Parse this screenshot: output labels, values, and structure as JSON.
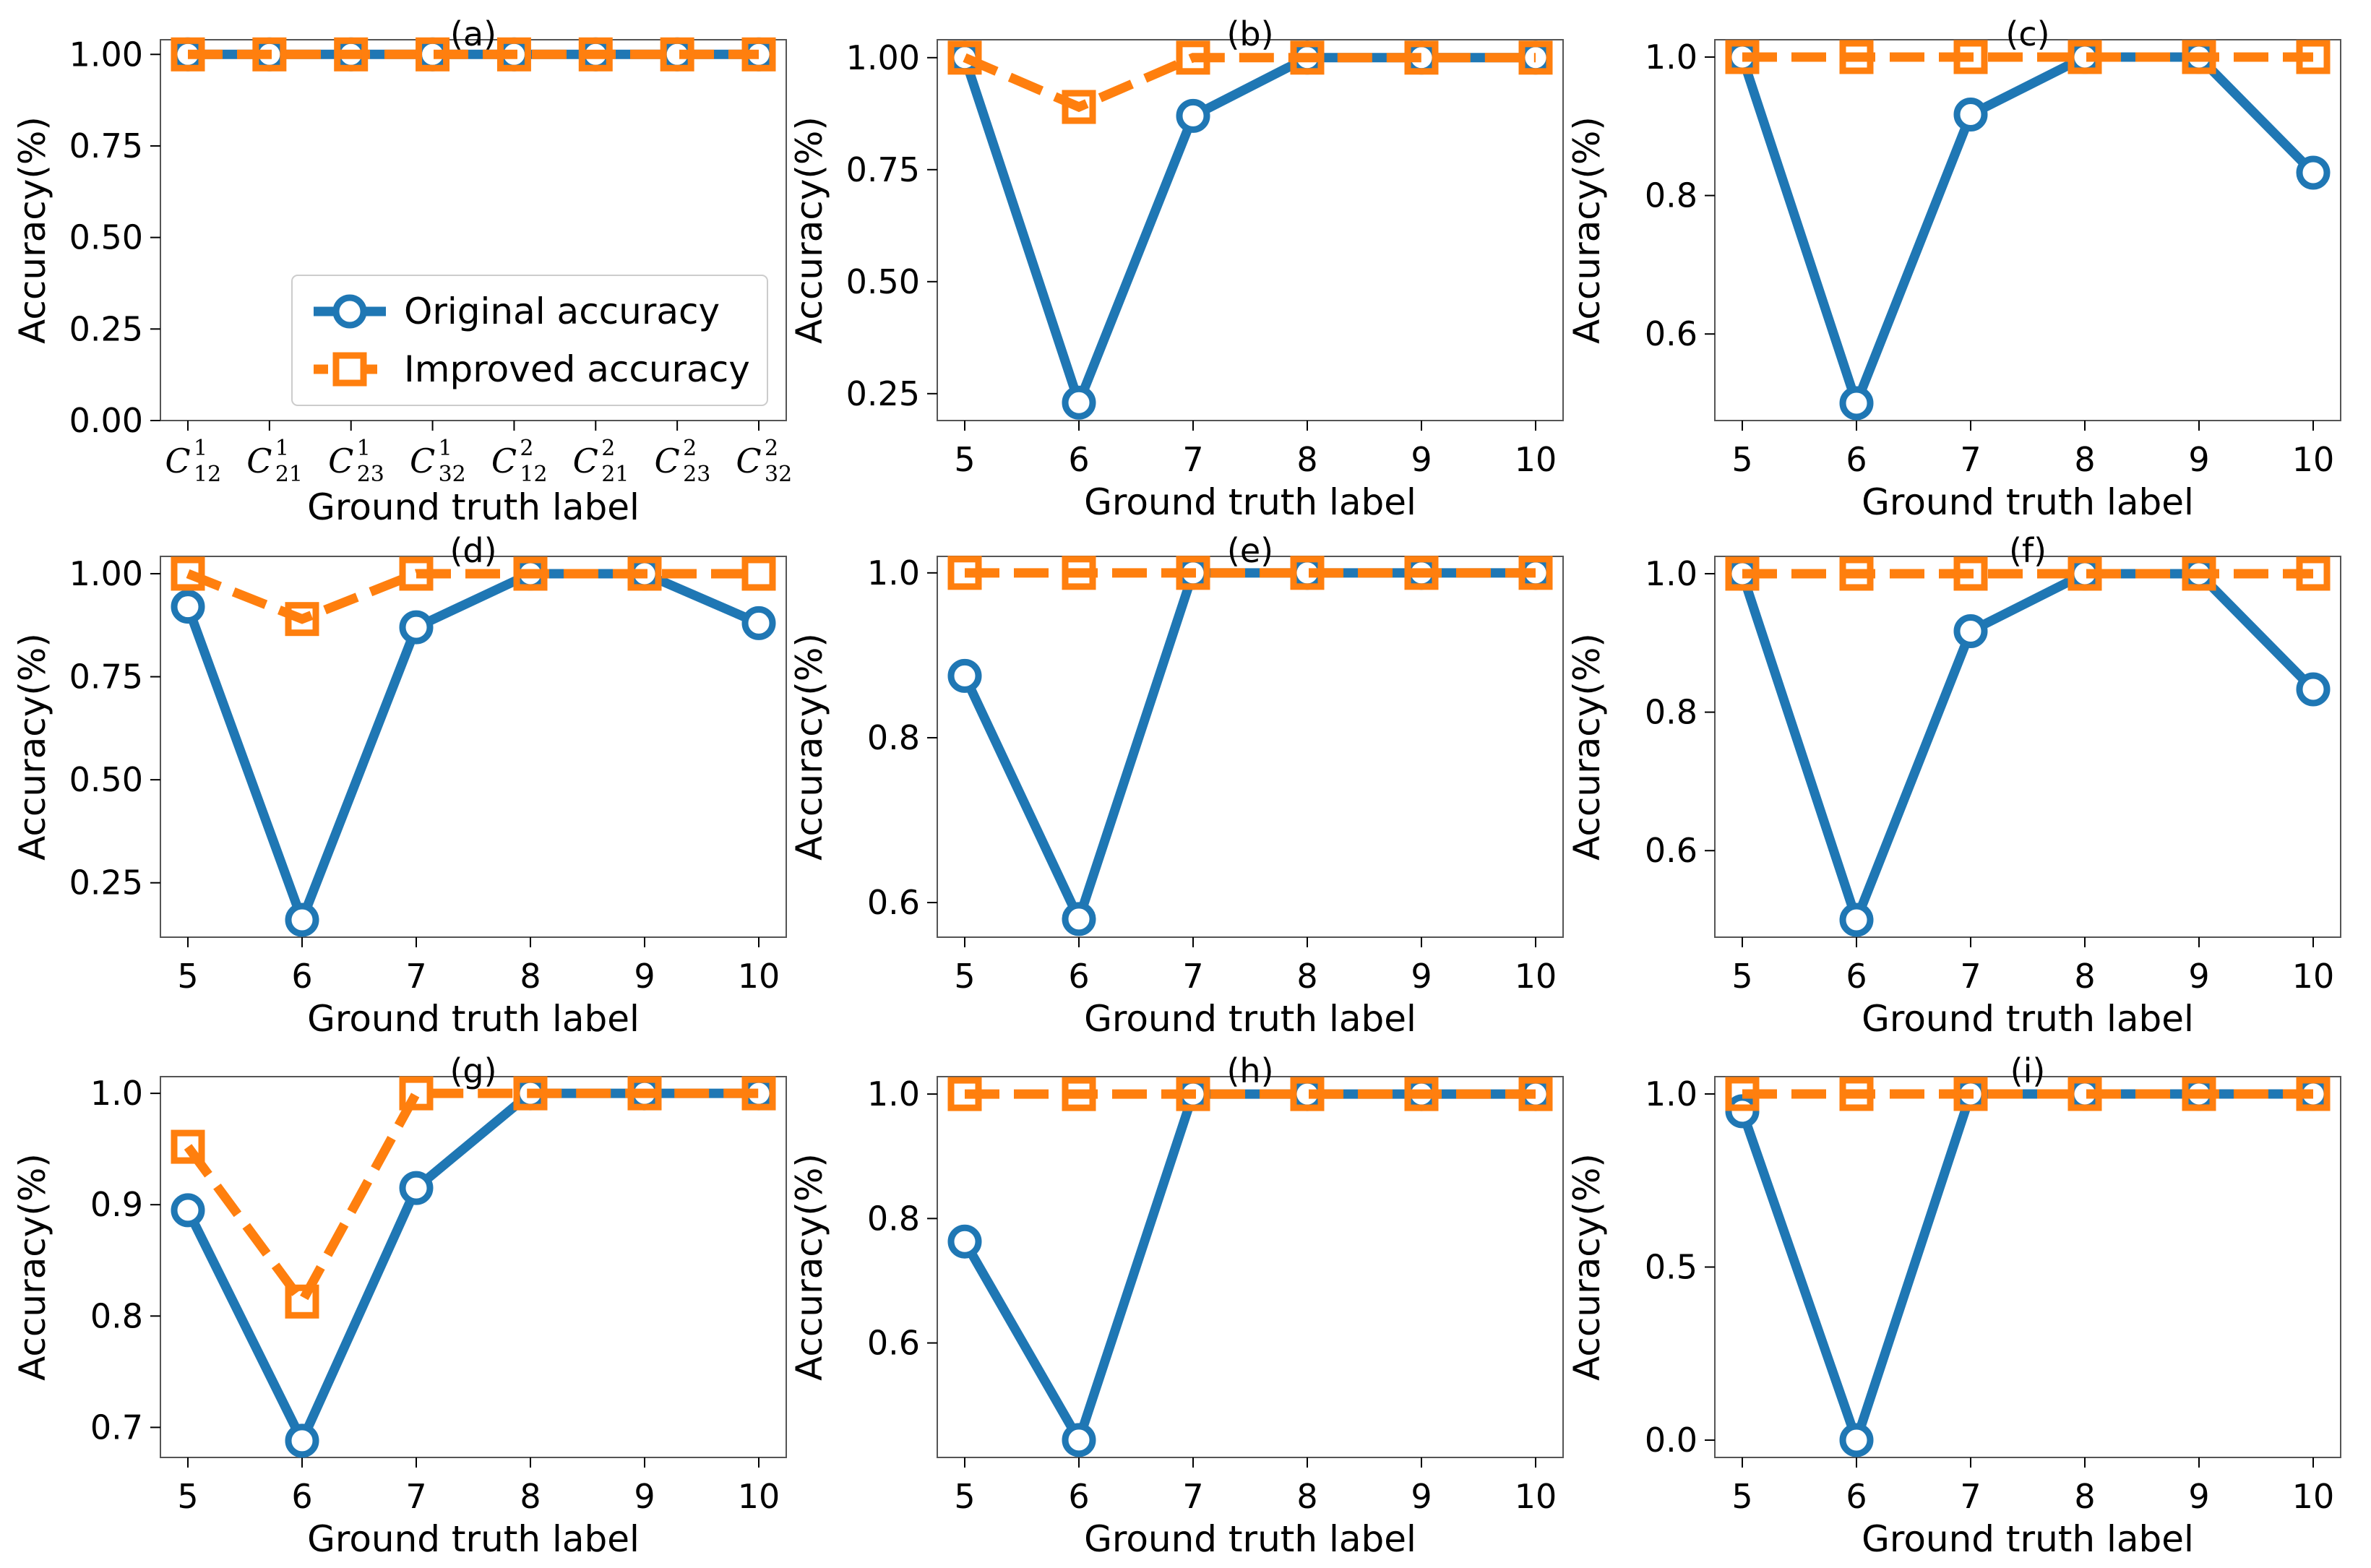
{
  "colors": {
    "original": "#1f77b4",
    "improved": "#ff7f0e"
  },
  "legend": {
    "placement": "lower-right",
    "original_label": "Original accuracy",
    "improved_label": "Improved accuracy"
  },
  "chart_data": [
    {
      "type": "line",
      "title": "(a)",
      "xlabel": "Ground truth label",
      "ylabel": "Accuracy(%)",
      "categories": [
        {
          "base": "C",
          "sup": "1",
          "sub": "12"
        },
        {
          "base": "C",
          "sup": "1",
          "sub": "21"
        },
        {
          "base": "C",
          "sup": "1",
          "sub": "23"
        },
        {
          "base": "C",
          "sup": "1",
          "sub": "32"
        },
        {
          "base": "C",
          "sup": "2",
          "sub": "12"
        },
        {
          "base": "C",
          "sup": "2",
          "sub": "21"
        },
        {
          "base": "C",
          "sup": "2",
          "sub": "23"
        },
        {
          "base": "C",
          "sup": "2",
          "sub": "32"
        }
      ],
      "ylim": [
        0,
        1.04
      ],
      "yticks": [
        "0.00",
        "0.25",
        "0.50",
        "0.75",
        "1.00"
      ],
      "grid": false,
      "legend": true,
      "series": [
        {
          "name": "Original accuracy",
          "values": [
            1,
            1,
            1,
            1,
            1,
            1,
            1,
            1
          ]
        },
        {
          "name": "Improved accuracy",
          "values": [
            1,
            1,
            1,
            1,
            1,
            1,
            1,
            1
          ]
        }
      ]
    },
    {
      "type": "line",
      "title": "(b)",
      "xlabel": "Ground truth label",
      "ylabel": "Accuracy(%)",
      "categories": [
        "5",
        "6",
        "7",
        "8",
        "9",
        "10"
      ],
      "ylim": [
        0.19,
        1.04
      ],
      "yticks": [
        "0.25",
        "0.50",
        "0.75",
        "1.00"
      ],
      "grid": false,
      "series": [
        {
          "name": "Original accuracy",
          "values": [
            1.0,
            0.23,
            0.87,
            1.0,
            1.0,
            1.0
          ]
        },
        {
          "name": "Improved accuracy",
          "values": [
            1.0,
            0.89,
            1.0,
            1.0,
            1.0,
            1.0
          ]
        }
      ]
    },
    {
      "type": "line",
      "title": "(c)",
      "xlabel": "Ground truth label",
      "ylabel": "Accuracy(%)",
      "categories": [
        "5",
        "6",
        "7",
        "8",
        "9",
        "10"
      ],
      "ylim": [
        0.475,
        1.025
      ],
      "yticks": [
        "0.6",
        "0.8",
        "1.0"
      ],
      "grid": false,
      "series": [
        {
          "name": "Original accuracy",
          "values": [
            1.0,
            0.5,
            0.917,
            1.0,
            1.0,
            0.833
          ]
        },
        {
          "name": "Improved accuracy",
          "values": [
            1.0,
            1.0,
            1.0,
            1.0,
            1.0,
            1.0
          ]
        }
      ]
    },
    {
      "type": "line",
      "title": "(d)",
      "xlabel": "Ground truth label",
      "ylabel": "Accuracy(%)",
      "categories": [
        "5",
        "6",
        "7",
        "8",
        "9",
        "10"
      ],
      "ylim": [
        0.118,
        1.042
      ],
      "yticks": [
        "0.25",
        "0.50",
        "0.75",
        "1.00"
      ],
      "grid": false,
      "series": [
        {
          "name": "Original accuracy",
          "values": [
            0.92,
            0.16,
            0.87,
            1.0,
            1.0,
            0.88
          ]
        },
        {
          "name": "Improved accuracy",
          "values": [
            1.0,
            0.89,
            1.0,
            1.0,
            1.0,
            1.0
          ]
        }
      ]
    },
    {
      "type": "line",
      "title": "(e)",
      "xlabel": "Ground truth label",
      "ylabel": "Accuracy(%)",
      "categories": [
        "5",
        "6",
        "7",
        "8",
        "9",
        "10"
      ],
      "ylim": [
        0.558,
        1.02
      ],
      "yticks": [
        "0.6",
        "0.8",
        "1.0"
      ],
      "grid": false,
      "series": [
        {
          "name": "Original accuracy",
          "values": [
            0.875,
            0.58,
            1.0,
            1.0,
            1.0,
            1.0
          ]
        },
        {
          "name": "Improved accuracy",
          "values": [
            1.0,
            1.0,
            1.0,
            1.0,
            1.0,
            1.0
          ]
        }
      ]
    },
    {
      "type": "line",
      "title": "(f)",
      "xlabel": "Ground truth label",
      "ylabel": "Accuracy(%)",
      "categories": [
        "5",
        "6",
        "7",
        "8",
        "9",
        "10"
      ],
      "ylim": [
        0.475,
        1.025
      ],
      "yticks": [
        "0.6",
        "0.8",
        "1.0"
      ],
      "grid": false,
      "series": [
        {
          "name": "Original accuracy",
          "values": [
            1.0,
            0.5,
            0.917,
            1.0,
            1.0,
            0.833
          ]
        },
        {
          "name": "Improved accuracy",
          "values": [
            1.0,
            1.0,
            1.0,
            1.0,
            1.0,
            1.0
          ]
        }
      ]
    },
    {
      "type": "line",
      "title": "(g)",
      "xlabel": "Ground truth label",
      "ylabel": "Accuracy(%)",
      "categories": [
        "5",
        "6",
        "7",
        "8",
        "9",
        "10"
      ],
      "ylim": [
        0.673,
        1.015
      ],
      "yticks": [
        "0.7",
        "0.8",
        "0.9",
        "1.0"
      ],
      "grid": false,
      "series": [
        {
          "name": "Original accuracy",
          "values": [
            0.895,
            0.688,
            0.915,
            1.0,
            1.0,
            1.0
          ]
        },
        {
          "name": "Improved accuracy",
          "values": [
            0.952,
            0.813,
            1.0,
            1.0,
            1.0,
            1.0
          ]
        }
      ]
    },
    {
      "type": "line",
      "title": "(h)",
      "xlabel": "Ground truth label",
      "ylabel": "Accuracy(%)",
      "categories": [
        "5",
        "6",
        "7",
        "8",
        "9",
        "10"
      ],
      "ylim": [
        0.416,
        1.028
      ],
      "yticks": [
        "0.6",
        "0.8",
        "1.0"
      ],
      "grid": false,
      "series": [
        {
          "name": "Original accuracy",
          "values": [
            0.763,
            0.444,
            1.0,
            1.0,
            1.0,
            1.0
          ]
        },
        {
          "name": "Improved accuracy",
          "values": [
            1.0,
            1.0,
            1.0,
            1.0,
            1.0,
            1.0
          ]
        }
      ]
    },
    {
      "type": "line",
      "title": "(i)",
      "xlabel": "Ground truth label",
      "ylabel": "Accuracy(%)",
      "categories": [
        "5",
        "6",
        "7",
        "8",
        "9",
        "10"
      ],
      "ylim": [
        -0.05,
        1.05
      ],
      "yticks": [
        "0.0",
        "0.5",
        "1.0"
      ],
      "grid": false,
      "series": [
        {
          "name": "Original accuracy",
          "values": [
            0.95,
            0.0,
            1.0,
            1.0,
            1.0,
            1.0
          ]
        },
        {
          "name": "Improved accuracy",
          "values": [
            1.0,
            1.0,
            1.0,
            1.0,
            1.0,
            1.0
          ]
        }
      ]
    }
  ]
}
